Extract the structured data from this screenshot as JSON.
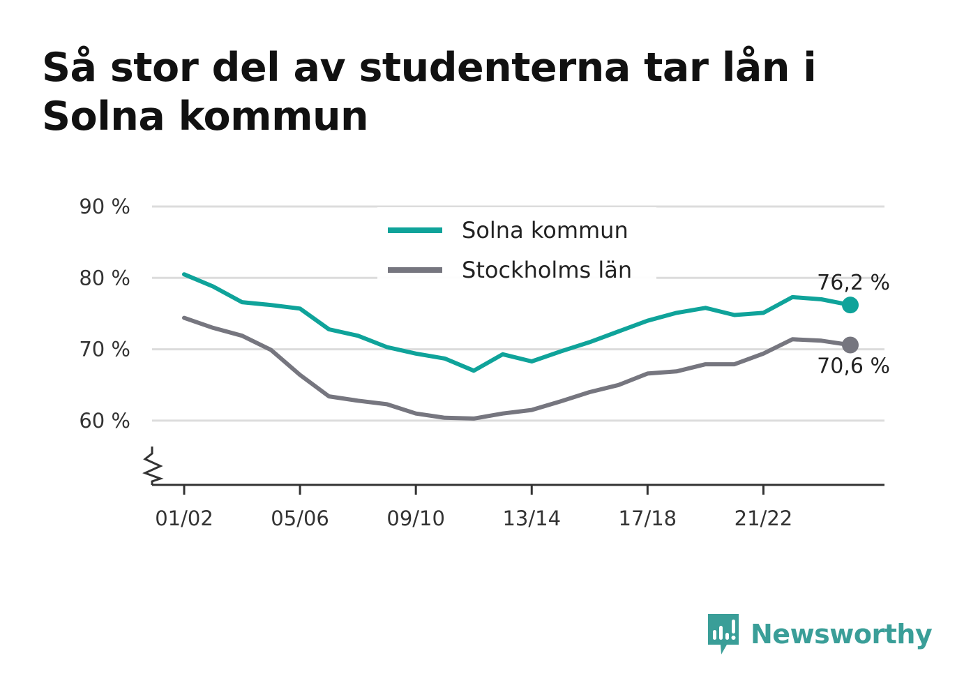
{
  "title": "Så stor del av studenterna tar lån i Solna kommun",
  "brand": {
    "name": "Newsworthy",
    "color": "#3a9e98"
  },
  "chart_data": {
    "type": "line",
    "title": "Så stor del av studenterna tar lån i Solna kommun",
    "xlabel": "",
    "ylabel": "",
    "categories": [
      "01/02",
      "02/03",
      "03/04",
      "04/05",
      "05/06",
      "06/07",
      "07/08",
      "08/09",
      "09/10",
      "10/11",
      "11/12",
      "12/13",
      "13/14",
      "14/15",
      "15/16",
      "16/17",
      "17/18",
      "18/19",
      "19/20",
      "20/21",
      "21/22",
      "22/23",
      "23/24",
      "24/25"
    ],
    "x_tick_labels": [
      "01/02",
      "05/06",
      "09/10",
      "13/14",
      "17/18",
      "21/22"
    ],
    "y_tick_labels": [
      "90 %",
      "80 %",
      "70 %",
      "60 %"
    ],
    "y_ticks": [
      90,
      80,
      70,
      60
    ],
    "ylim": [
      51,
      90
    ],
    "axis_break": true,
    "grid": true,
    "legend_position": "top-center",
    "series": [
      {
        "name": "Solna kommun",
        "color": "#0fa39a",
        "values": [
          80.5,
          78.8,
          76.6,
          76.2,
          75.7,
          72.8,
          71.9,
          70.3,
          69.4,
          68.7,
          67.0,
          69.3,
          68.3,
          69.7,
          71.0,
          72.5,
          74.0,
          75.1,
          75.8,
          74.8,
          75.1,
          77.3,
          77.0,
          76.2
        ],
        "end_label": "76,2 %"
      },
      {
        "name": "Stockholms län",
        "color": "#76767f",
        "values": [
          74.4,
          73.0,
          71.9,
          69.9,
          66.4,
          63.4,
          62.8,
          62.3,
          61.0,
          60.4,
          60.3,
          61.0,
          61.5,
          62.7,
          64.0,
          65.0,
          66.6,
          66.9,
          67.9,
          67.9,
          69.4,
          71.4,
          71.2,
          70.6
        ],
        "end_label": "70,6 %"
      }
    ]
  }
}
